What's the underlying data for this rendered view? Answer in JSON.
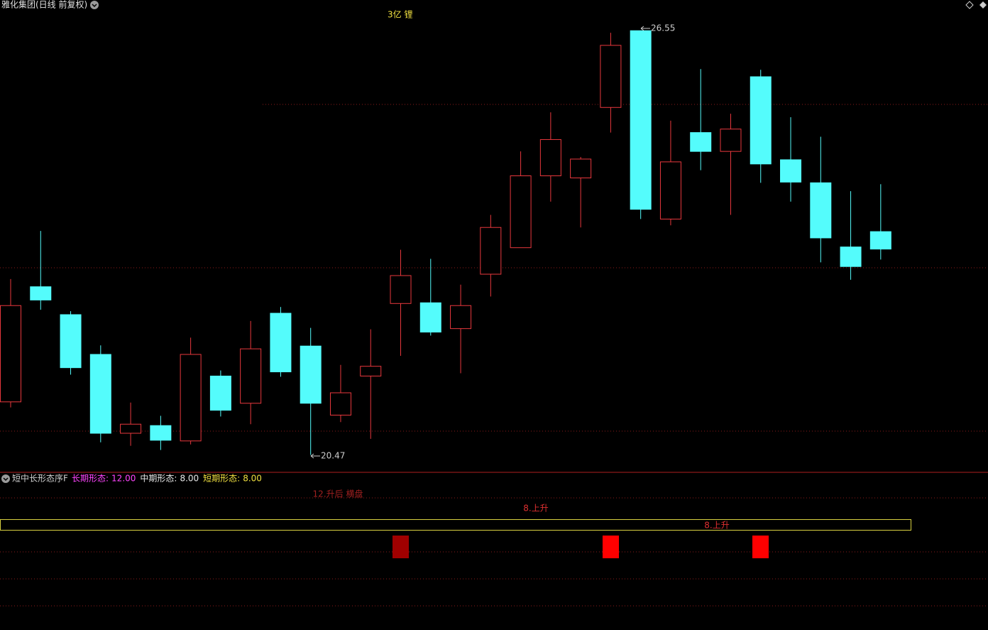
{
  "chart_data": {
    "type": "candlestick",
    "title": "雅化集团(日线 前复权)",
    "subtitle": "3亿 锂",
    "open": [
      21.23,
      22.88,
      22.48,
      21.91,
      20.78,
      20.89,
      20.67,
      21.6,
      21.21,
      22.5,
      22.03,
      21.04,
      21.6,
      22.64,
      22.65,
      22.28,
      23.06,
      23.44,
      24.47,
      24.44,
      25.45,
      26.55,
      23.85,
      25.09,
      24.82,
      25.89,
      24.7,
      24.37,
      23.45,
      23.67
    ],
    "high": [
      22.99,
      23.68,
      22.53,
      22.04,
      21.22,
      21.03,
      22.15,
      21.68,
      22.39,
      22.59,
      22.29,
      21.76,
      22.27,
      23.41,
      23.28,
      22.91,
      23.91,
      24.82,
      25.38,
      24.74,
      26.52,
      26.55,
      25.26,
      26.0,
      25.36,
      25.99,
      25.31,
      25.03,
      24.25,
      24.35
    ],
    "low": [
      21.15,
      22.55,
      21.62,
      20.65,
      20.6,
      20.54,
      20.62,
      21.02,
      20.91,
      21.59,
      20.47,
      20.94,
      20.7,
      21.89,
      22.18,
      21.64,
      22.74,
      23.44,
      24.1,
      23.73,
      25.09,
      23.85,
      23.76,
      24.55,
      23.91,
      24.37,
      24.1,
      23.23,
      22.98,
      23.27
    ],
    "close": [
      22.61,
      22.69,
      21.72,
      20.78,
      20.91,
      20.68,
      21.91,
      21.11,
      21.99,
      21.66,
      21.21,
      21.36,
      21.74,
      23.04,
      22.23,
      22.61,
      23.73,
      24.47,
      24.99,
      24.71,
      26.34,
      23.99,
      24.67,
      24.82,
      25.14,
      24.64,
      24.38,
      23.58,
      23.17,
      23.42
    ],
    "up_color": "#e8383d",
    "down_color": "#54fcfc",
    "ylim": [
      20.22,
      26.99
    ],
    "indicator": {
      "name": "短中长形态序F",
      "items": [
        {
          "name": "长期形态:",
          "value": "12.00",
          "color": "#ff44ff"
        },
        {
          "name": "中期形态:",
          "value": "8.00",
          "color": "#e8e8e8"
        },
        {
          "name": "短期形态:",
          "value": "8.00",
          "color": "#f0e040"
        }
      ],
      "labels": [
        "12.升后 横盘",
        "8.上升",
        "8.上升"
      ]
    }
  }
}
